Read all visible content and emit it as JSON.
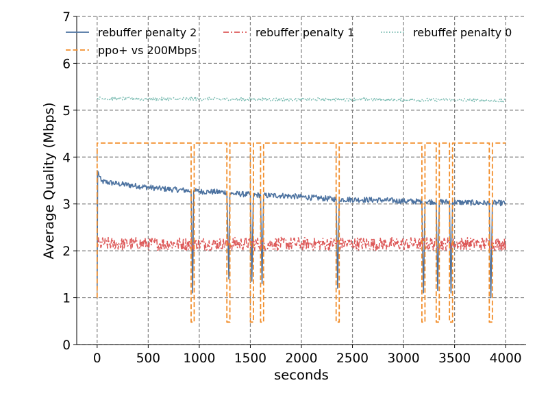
{
  "chart_data": {
    "type": "line",
    "xlabel": "seconds",
    "ylabel": "Average Quality (Mbps)",
    "xlim": [
      -200,
      4200
    ],
    "ylim": [
      0,
      7
    ],
    "xticks": [
      0,
      500,
      1000,
      1500,
      2000,
      2500,
      3000,
      3500,
      4000
    ],
    "yticks": [
      0,
      1,
      2,
      3,
      4,
      5,
      6,
      7
    ],
    "grid": true,
    "legend_placement": "top",
    "series": [
      {
        "name": "rebuffer penalty 2",
        "color": "#4c72a0",
        "style": "solid",
        "x": [
          0,
          5,
          40,
          200,
          400,
          600,
          800,
          920,
          935,
          945,
          960,
          1100,
          1270,
          1290,
          1300,
          1320,
          1500,
          1515,
          1530,
          1600,
          1615,
          1630,
          1800,
          2000,
          2200,
          2340,
          2355,
          2370,
          2600,
          2800,
          3000,
          3180,
          3195,
          3210,
          3320,
          3335,
          3350,
          3450,
          3465,
          3480,
          3600,
          3800,
          3840,
          3855,
          3870,
          4000
        ],
        "y": [
          1.2,
          3.7,
          3.48,
          3.43,
          3.38,
          3.33,
          3.3,
          3.28,
          1.1,
          3.28,
          3.27,
          3.26,
          3.25,
          1.4,
          3.22,
          3.22,
          3.2,
          1.35,
          3.19,
          3.19,
          1.3,
          3.18,
          3.18,
          3.15,
          3.12,
          3.1,
          1.2,
          3.1,
          3.09,
          3.08,
          3.06,
          3.05,
          1.1,
          3.05,
          3.05,
          1.15,
          3.05,
          3.04,
          1.1,
          3.04,
          3.03,
          3.02,
          3.02,
          1.0,
          3.02,
          3.02
        ]
      },
      {
        "name": "rebuffer penalty 1",
        "color": "#dd5959",
        "style": "dashdot",
        "x": [
          0,
          500,
          1000,
          1500,
          2000,
          2500,
          3000,
          3500,
          4000
        ],
        "y": [
          2.15,
          2.15,
          2.15,
          2.15,
          2.15,
          2.15,
          2.15,
          2.15,
          2.15
        ]
      },
      {
        "name": "rebuffer penalty 0",
        "color": "#70b7ac",
        "style": "dotted",
        "x": [
          0,
          500,
          1000,
          1500,
          2000,
          2500,
          3000,
          3500,
          4000
        ],
        "y": [
          5.25,
          5.24,
          5.24,
          5.23,
          5.23,
          5.23,
          5.22,
          5.22,
          5.2
        ]
      },
      {
        "name": "ppo+ vs 200Mbps",
        "color": "#f28e2b",
        "style": "dashed",
        "x": [
          0,
          0,
          920,
          920,
          950,
          950,
          1270,
          1270,
          1300,
          1300,
          1500,
          1500,
          1530,
          1530,
          1600,
          1600,
          1630,
          1630,
          2340,
          2340,
          2370,
          2370,
          3180,
          3180,
          3210,
          3210,
          3320,
          3320,
          3350,
          3350,
          3450,
          3450,
          3480,
          3480,
          3840,
          3840,
          3870,
          3870,
          4000
        ],
        "y": [
          1.0,
          4.3,
          4.3,
          0.48,
          0.48,
          4.3,
          4.3,
          0.48,
          0.48,
          4.3,
          4.3,
          0.48,
          0.48,
          4.3,
          4.3,
          0.48,
          0.48,
          4.3,
          4.3,
          0.48,
          0.48,
          4.3,
          4.3,
          0.48,
          0.48,
          4.3,
          4.3,
          0.48,
          0.48,
          4.3,
          4.3,
          0.48,
          0.48,
          4.3,
          4.3,
          0.48,
          0.48,
          4.3,
          4.3
        ]
      }
    ]
  }
}
